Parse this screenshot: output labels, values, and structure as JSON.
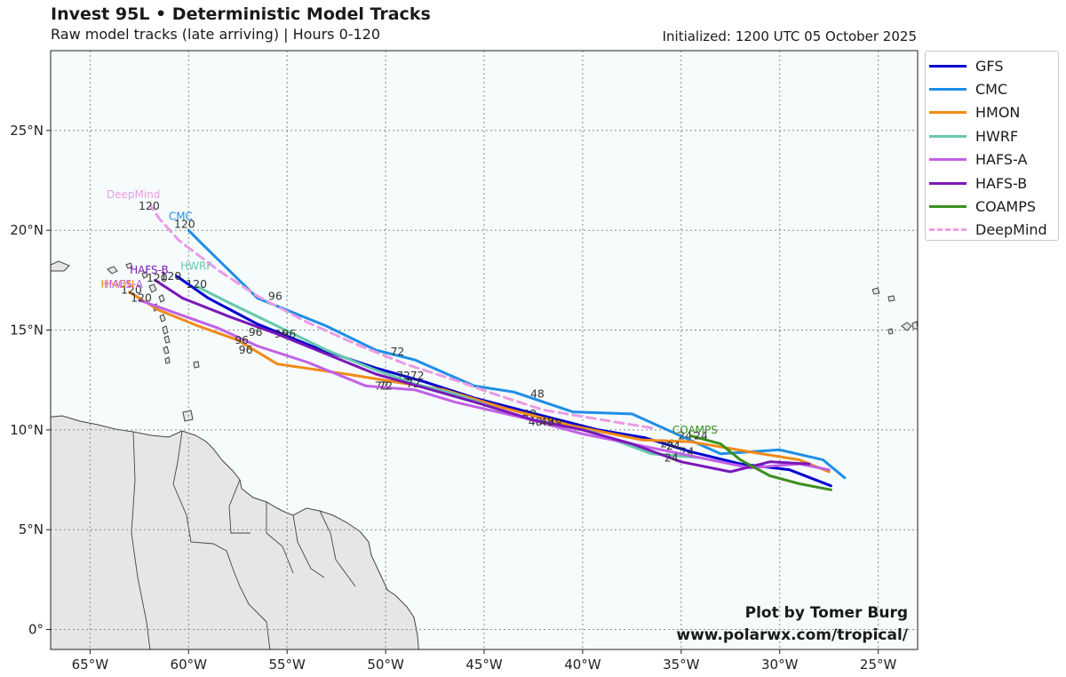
{
  "title": "Invest 95L • Deterministic Model Tracks",
  "subtitle": "Raw model tracks (late arriving) | Hours 0-120",
  "initialized": "Initialized: 1200 UTC 05 October 2025",
  "credit_line1": "Plot by Tomer Burg",
  "credit_line2": "www.polarwx.com/tropical/",
  "colors": {
    "ocean": "#f6fbfc",
    "land": "#e6e6e6",
    "coast": "#444444",
    "grid": "#8a8a8a"
  },
  "axes": {
    "lon_range": [
      -67,
      -23
    ],
    "lat_range": [
      -1,
      29
    ],
    "x_ticks": [
      {
        "v": -65,
        "label": "65°W"
      },
      {
        "v": -60,
        "label": "60°W"
      },
      {
        "v": -55,
        "label": "55°W"
      },
      {
        "v": -50,
        "label": "50°W"
      },
      {
        "v": -45,
        "label": "45°W"
      },
      {
        "v": -40,
        "label": "40°W"
      },
      {
        "v": -35,
        "label": "35°W"
      },
      {
        "v": -30,
        "label": "30°W"
      },
      {
        "v": -25,
        "label": "25°W"
      }
    ],
    "y_ticks": [
      {
        "v": 0,
        "label": "0°"
      },
      {
        "v": 5,
        "label": "5°N"
      },
      {
        "v": 10,
        "label": "10°N"
      },
      {
        "v": 15,
        "label": "15°N"
      },
      {
        "v": 20,
        "label": "20°N"
      },
      {
        "v": 25,
        "label": "25°N"
      }
    ]
  },
  "tracks": [
    {
      "name": "GFS",
      "color": "#0000d0",
      "dashed": false,
      "points": [
        [
          -27.4,
          7.2
        ],
        [
          -29.5,
          8.0
        ],
        [
          -32.0,
          8.3
        ],
        [
          -34.5,
          8.9
        ],
        [
          -36.8,
          9.6
        ],
        [
          -39.2,
          10.0
        ],
        [
          -42.0,
          10.7
        ],
        [
          -45.5,
          11.6
        ],
        [
          -48.0,
          12.4
        ],
        [
          -50.5,
          13.1
        ],
        [
          -53.5,
          14.1
        ],
        [
          -56.5,
          15.3
        ],
        [
          -59.0,
          16.6
        ],
        [
          -60.6,
          17.7
        ]
      ],
      "labels": [
        {
          "h": "24",
          "p": [
            -35.7,
            9.3
          ]
        },
        {
          "h": "48",
          "p": [
            -42.7,
            10.8
          ]
        },
        {
          "h": "72",
          "p": [
            -49.1,
            12.7
          ]
        },
        {
          "h": "96",
          "p": [
            -55.3,
            14.8
          ]
        },
        {
          "h": "120",
          "p": [
            -60.9,
            17.7
          ]
        }
      ]
    },
    {
      "name": "CMC",
      "color": "#1f8ee6",
      "dashed": false,
      "points": [
        [
          -26.7,
          7.6
        ],
        [
          -27.8,
          8.5
        ],
        [
          -30.0,
          9.0
        ],
        [
          -33.0,
          8.8
        ],
        [
          -34.8,
          9.6
        ],
        [
          -37.5,
          10.8
        ],
        [
          -40.5,
          10.9
        ],
        [
          -43.5,
          11.9
        ],
        [
          -45.5,
          12.2
        ],
        [
          -48.5,
          13.5
        ],
        [
          -50.5,
          14.0
        ],
        [
          -53.0,
          15.2
        ],
        [
          -56.5,
          16.6
        ],
        [
          -59.4,
          19.4
        ],
        [
          -60.0,
          20.0
        ]
      ],
      "labels": [
        {
          "h": "48",
          "p": [
            -42.3,
            11.8
          ]
        },
        {
          "h": "72",
          "p": [
            -49.4,
            13.9
          ]
        },
        {
          "h": "96",
          "p": [
            -55.6,
            16.7
          ]
        },
        {
          "h": "120",
          "p": [
            -60.2,
            20.3
          ]
        }
      ],
      "tag": {
        "p": [
          -60.4,
          20.7
        ]
      }
    },
    {
      "name": "HMON",
      "color": "#f28a17",
      "dashed": false,
      "points": [
        [
          -27.5,
          7.9
        ],
        [
          -29.0,
          8.5
        ],
        [
          -31.5,
          8.9
        ],
        [
          -34.5,
          9.4
        ],
        [
          -37.0,
          9.5
        ],
        [
          -40.5,
          10.2
        ],
        [
          -44.0,
          11.1
        ],
        [
          -47.0,
          12.0
        ],
        [
          -52.0,
          12.8
        ],
        [
          -55.5,
          13.3
        ],
        [
          -57.5,
          14.5
        ],
        [
          -59.5,
          15.2
        ],
        [
          -61.5,
          16.0
        ],
        [
          -63.0,
          16.9
        ]
      ],
      "labels": [
        {
          "h": "24",
          "p": [
            -34.8,
            9.7
          ]
        },
        {
          "h": "72",
          "p": [
            -50.2,
            12.2
          ]
        },
        {
          "h": "96",
          "p": [
            -57.1,
            14.0
          ]
        },
        {
          "h": "120",
          "p": [
            -62.9,
            17.0
          ]
        }
      ],
      "tag": {
        "p": [
          -63.6,
          17.3
        ]
      }
    },
    {
      "name": "HWRF",
      "color": "#66c9ae",
      "dashed": false,
      "points": [
        [
          -34.0,
          8.6
        ],
        [
          -36.5,
          8.8
        ],
        [
          -39.5,
          9.9
        ],
        [
          -43.0,
          10.6
        ],
        [
          -46.5,
          11.8
        ],
        [
          -48.5,
          12.3
        ],
        [
          -50.5,
          13.0
        ],
        [
          -53.0,
          14.0
        ],
        [
          -55.5,
          15.2
        ],
        [
          -58.0,
          16.4
        ],
        [
          -59.6,
          17.2
        ]
      ],
      "labels": [
        {
          "h": "24",
          "p": [
            -34.7,
            8.9
          ]
        },
        {
          "h": "48",
          "p": [
            -41.4,
            10.3
          ]
        },
        {
          "h": "72",
          "p": [
            -48.6,
            12.3
          ]
        },
        {
          "h": "96",
          "p": [
            -54.9,
            14.8
          ]
        },
        {
          "h": "120",
          "p": [
            -59.6,
            17.3
          ]
        }
      ],
      "tag": {
        "p": [
          -59.6,
          18.2
        ]
      }
    },
    {
      "name": "HAFS-A",
      "color": "#c161e6",
      "dashed": false,
      "points": [
        [
          -27.5,
          8.0
        ],
        [
          -29.0,
          8.3
        ],
        [
          -31.5,
          8.1
        ],
        [
          -34.5,
          8.7
        ],
        [
          -37.0,
          9.2
        ],
        [
          -40.0,
          9.8
        ],
        [
          -43.0,
          10.6
        ],
        [
          -46.5,
          11.4
        ],
        [
          -48.5,
          12.0
        ],
        [
          -51.0,
          12.2
        ],
        [
          -54.0,
          13.4
        ],
        [
          -56.5,
          14.2
        ],
        [
          -58.5,
          15.1
        ],
        [
          -60.5,
          15.8
        ],
        [
          -62.5,
          16.5
        ]
      ],
      "labels": [
        {
          "h": "24",
          "p": [
            -35.4,
            9.2
          ]
        },
        {
          "h": "48",
          "p": [
            -42.4,
            10.4
          ]
        },
        {
          "h": "72",
          "p": [
            -50.0,
            12.2
          ]
        },
        {
          "h": "96",
          "p": [
            -57.3,
            14.5
          ]
        },
        {
          "h": "120",
          "p": [
            -62.4,
            16.6
          ]
        }
      ],
      "tag": {
        "p": [
          -63.3,
          17.3
        ]
      }
    },
    {
      "name": "HAFS-B",
      "color": "#7a18b8",
      "dashed": false,
      "points": [
        [
          -28.5,
          8.3
        ],
        [
          -30.5,
          8.4
        ],
        [
          -32.5,
          7.9
        ],
        [
          -35.0,
          8.4
        ],
        [
          -37.5,
          9.3
        ],
        [
          -40.0,
          10.0
        ],
        [
          -42.5,
          10.5
        ],
        [
          -45.5,
          11.4
        ],
        [
          -48.0,
          12.1
        ],
        [
          -50.5,
          12.8
        ],
        [
          -53.0,
          13.8
        ],
        [
          -55.5,
          14.8
        ],
        [
          -58.0,
          15.7
        ],
        [
          -60.3,
          16.6
        ],
        [
          -61.7,
          17.5
        ]
      ],
      "labels": [
        {
          "h": "24",
          "p": [
            -35.5,
            8.6
          ]
        },
        {
          "h": "48",
          "p": [
            -41.8,
            10.4
          ]
        },
        {
          "h": "72",
          "p": [
            -48.4,
            12.7
          ]
        },
        {
          "h": "96",
          "p": [
            -56.6,
            14.9
          ]
        },
        {
          "h": "120",
          "p": [
            -61.6,
            17.6
          ]
        }
      ],
      "tag": {
        "p": [
          -62.0,
          18.0
        ]
      }
    },
    {
      "name": "COAMPS",
      "color": "#3c8f1f",
      "dashed": false,
      "points": [
        [
          -27.4,
          7.0
        ],
        [
          -29.0,
          7.3
        ],
        [
          -30.5,
          7.7
        ],
        [
          -32.0,
          8.5
        ],
        [
          -33.0,
          9.3
        ],
        [
          -34.5,
          9.7
        ]
      ],
      "labels": [
        {
          "h": "24",
          "p": [
            -34.0,
            9.7
          ]
        }
      ],
      "tag": {
        "p": [
          -34.3,
          10.0
        ]
      }
    },
    {
      "name": "DeepMind",
      "color": "#ea9ce4",
      "dashed": true,
      "points": [
        [
          -36.5,
          10.1
        ],
        [
          -39.0,
          10.5
        ],
        [
          -42.0,
          11.0
        ],
        [
          -44.5,
          11.8
        ],
        [
          -46.5,
          12.5
        ],
        [
          -49.0,
          13.3
        ],
        [
          -51.5,
          14.3
        ],
        [
          -54.0,
          15.4
        ],
        [
          -56.5,
          16.7
        ],
        [
          -58.5,
          18.0
        ],
        [
          -60.5,
          19.5
        ],
        [
          -61.5,
          20.6
        ],
        [
          -61.9,
          21.2
        ]
      ],
      "labels": [
        {
          "h": "120",
          "p": [
            -62.0,
            21.2
          ]
        }
      ],
      "tag": {
        "p": [
          -62.8,
          21.8
        ]
      }
    }
  ]
}
